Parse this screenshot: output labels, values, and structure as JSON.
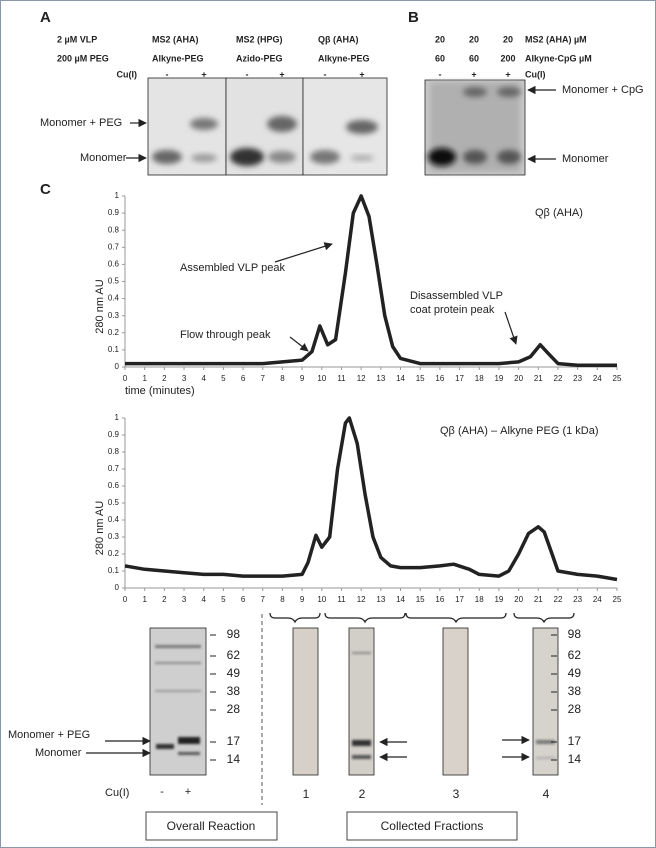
{
  "panel_a": {
    "label": "A",
    "row_labels": [
      "2 µM VLP",
      "200 µM PEG"
    ],
    "columns": [
      {
        "vlp": "MS2 (AHA)",
        "reagent": "Alkyne-PEG"
      },
      {
        "vlp": "MS2 (HPG)",
        "reagent": "Azido-PEG"
      },
      {
        "vlp": "Qβ (AHA)",
        "reagent": "Alkyne-PEG"
      }
    ],
    "cu_label": "Cu(I)",
    "cu_signs": [
      [
        "-",
        "+"
      ],
      [
        "-",
        "+"
      ],
      [
        "-",
        "+"
      ]
    ],
    "band_labels": [
      "Monomer + PEG",
      "Monomer"
    ]
  },
  "panel_b": {
    "label": "B",
    "rows": [
      {
        "values": [
          "20",
          "20",
          "20"
        ],
        "label": "MS2 (AHA) µM"
      },
      {
        "values": [
          "60",
          "60",
          "200"
        ],
        "label": "Alkyne-CpG µM"
      },
      {
        "values": [
          "-",
          "+",
          "+"
        ],
        "label": "Cu(I)"
      }
    ],
    "band_labels": [
      "Monomer + CpG",
      "Monomer"
    ]
  },
  "panel_c": {
    "label": "C"
  },
  "chart_data": [
    {
      "type": "line",
      "title": "Qβ (AHA)",
      "ylabel": "280 nm AU",
      "xlabel": "time (minutes)",
      "annotations": [
        {
          "lines": [
            "Assembled VLP peak"
          ]
        },
        {
          "lines": [
            "Flow through peak"
          ]
        },
        {
          "lines": [
            "Disassembled VLP",
            "coat protein peak"
          ]
        }
      ],
      "x": [
        0,
        1,
        2,
        3,
        4,
        5,
        6,
        7,
        8,
        9,
        9.5,
        9.9,
        10.3,
        10.7,
        11.2,
        11.6,
        12,
        12.4,
        12.8,
        13.2,
        13.6,
        14,
        15,
        16,
        17,
        18,
        19,
        20,
        20.6,
        21.1,
        21.5,
        22,
        23,
        24,
        25
      ],
      "values": [
        0.02,
        0.02,
        0.02,
        0.02,
        0.02,
        0.02,
        0.02,
        0.02,
        0.03,
        0.04,
        0.09,
        0.24,
        0.13,
        0.16,
        0.55,
        0.9,
        1.0,
        0.88,
        0.6,
        0.3,
        0.12,
        0.05,
        0.02,
        0.02,
        0.02,
        0.02,
        0.02,
        0.03,
        0.06,
        0.13,
        0.08,
        0.02,
        0.01,
        0.01,
        0.01
      ],
      "color": "#222222",
      "xlim": [
        0,
        25
      ],
      "xticks": [
        0,
        1,
        2,
        3,
        4,
        5,
        6,
        7,
        8,
        9,
        10,
        11,
        12,
        13,
        14,
        15,
        16,
        17,
        18,
        19,
        20,
        21,
        22,
        23,
        24,
        25
      ],
      "ylim": [
        0,
        1
      ],
      "yticks": [
        0,
        0.1,
        0.2,
        0.3,
        0.4,
        0.5,
        0.6,
        0.7,
        0.8,
        0.9,
        1
      ]
    },
    {
      "type": "line",
      "title": "Qβ (AHA) – Alkyne PEG (1 kDa)",
      "ylabel": "280 nm AU",
      "x": [
        0,
        1,
        2,
        3,
        4,
        5,
        6,
        7,
        8,
        9,
        9.3,
        9.7,
        10,
        10.4,
        10.8,
        11.2,
        11.4,
        11.8,
        12.2,
        12.6,
        13,
        13.5,
        14,
        15,
        16,
        16.7,
        17.5,
        18,
        19,
        19.5,
        20,
        20.5,
        21,
        21.3,
        21.7,
        22,
        23,
        24,
        25
      ],
      "values": [
        0.13,
        0.11,
        0.1,
        0.09,
        0.08,
        0.08,
        0.07,
        0.07,
        0.07,
        0.08,
        0.15,
        0.31,
        0.24,
        0.3,
        0.7,
        0.97,
        1.0,
        0.85,
        0.55,
        0.3,
        0.18,
        0.13,
        0.12,
        0.12,
        0.13,
        0.14,
        0.11,
        0.08,
        0.07,
        0.1,
        0.2,
        0.32,
        0.36,
        0.33,
        0.2,
        0.1,
        0.08,
        0.07,
        0.05
      ],
      "color": "#222222",
      "xlim": [
        0,
        25
      ],
      "xticks": [
        0,
        1,
        2,
        3,
        4,
        5,
        6,
        7,
        8,
        9,
        10,
        11,
        12,
        13,
        14,
        15,
        16,
        17,
        18,
        19,
        20,
        21,
        22,
        23,
        24,
        25
      ],
      "ylim": [
        0,
        1
      ],
      "yticks": [
        0,
        0.1,
        0.2,
        0.3,
        0.4,
        0.5,
        0.6,
        0.7,
        0.8,
        0.9,
        1
      ]
    }
  ],
  "gels": {
    "mw_markers_left": [
      98,
      62,
      49,
      38,
      28,
      17,
      14
    ],
    "mw_markers_right": [
      98,
      62,
      49,
      38,
      28,
      17,
      14
    ],
    "band_labels": [
      "Monomer + PEG",
      "Monomer"
    ],
    "cu_label": "Cu(I)",
    "cu_signs": [
      "-",
      "+"
    ],
    "fractions": [
      1,
      2,
      3,
      4
    ],
    "captions": [
      "Overall Reaction",
      "Collected Fractions"
    ]
  }
}
